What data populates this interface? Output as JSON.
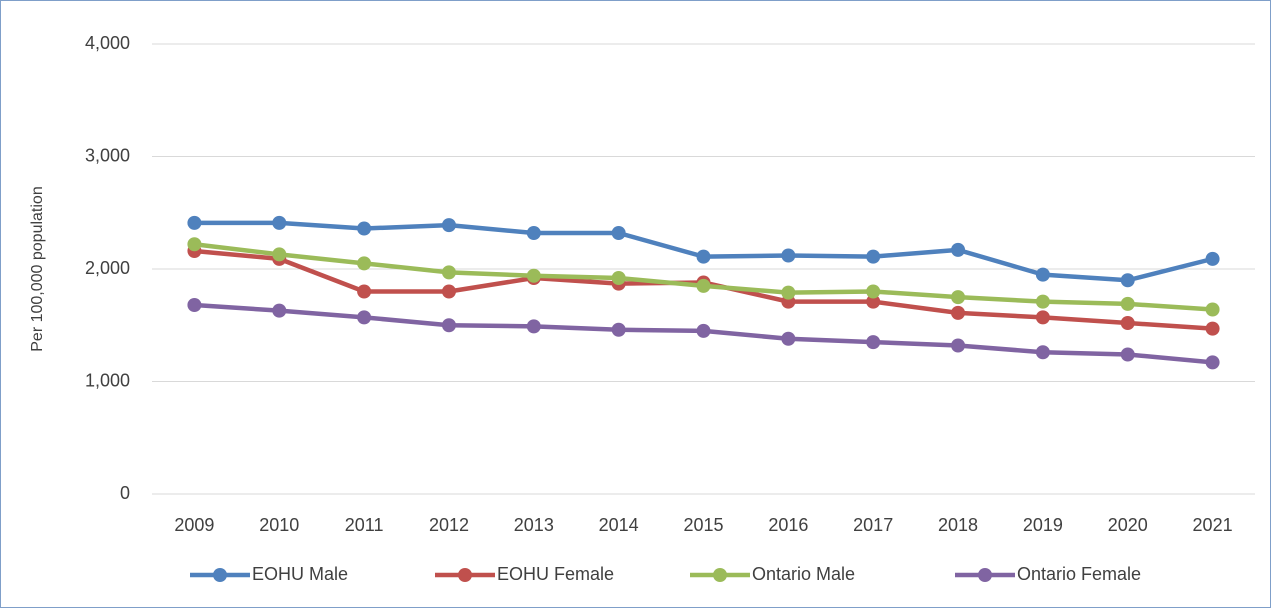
{
  "chart_data": {
    "type": "line",
    "y_label": "Per 100,000 population",
    "categories": [
      "2009",
      "2010",
      "2011",
      "2012",
      "2013",
      "2014",
      "2015",
      "2016",
      "2017",
      "2018",
      "2019",
      "2020",
      "2021"
    ],
    "series": [
      {
        "name": "EOHU Male",
        "color": "#4f81bd",
        "values": [
          2410,
          2410,
          2360,
          2390,
          2320,
          2320,
          2110,
          2120,
          2110,
          2170,
          1950,
          1900,
          2090
        ]
      },
      {
        "name": "EOHU Female",
        "color": "#c0504d",
        "values": [
          2160,
          2090,
          1800,
          1800,
          1920,
          1870,
          1880,
          1710,
          1710,
          1610,
          1570,
          1520,
          1470
        ]
      },
      {
        "name": "Ontario Male",
        "color": "#9bbb59",
        "values": [
          2220,
          2130,
          2050,
          1970,
          1940,
          1920,
          1850,
          1790,
          1800,
          1750,
          1710,
          1690,
          1640
        ]
      },
      {
        "name": "Ontario Female",
        "color": "#8064a2",
        "values": [
          1680,
          1630,
          1570,
          1500,
          1490,
          1460,
          1450,
          1380,
          1350,
          1320,
          1260,
          1240,
          1170
        ]
      }
    ],
    "ylim": [
      0,
      4000
    ],
    "yticks": [
      0,
      {
        "value": 1000,
        "label": "1,000"
      },
      {
        "value": 2000,
        "label": "2,000"
      },
      {
        "value": 3000,
        "label": "3,000"
      },
      {
        "value": 4000,
        "label": "4,000"
      }
    ],
    "grid": true,
    "legend": "bottom"
  }
}
